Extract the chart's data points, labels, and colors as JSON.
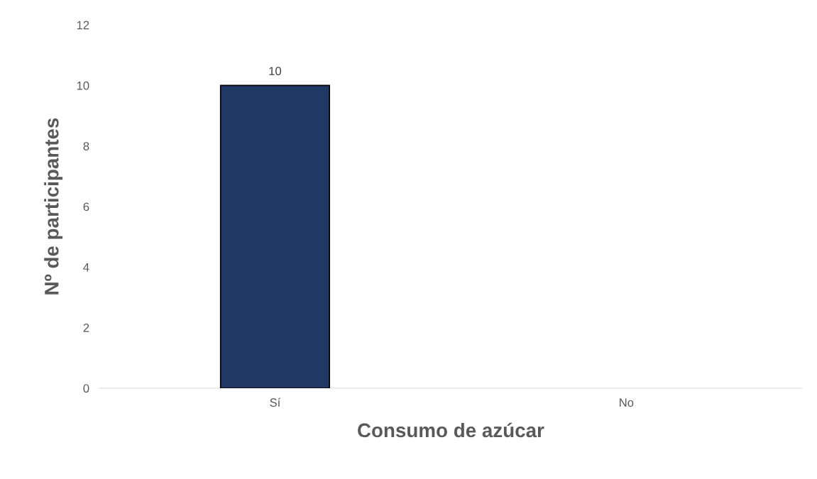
{
  "chart_data": {
    "type": "bar",
    "xlabel": "Consumo de azúcar",
    "ylabel": "Nº de participantes",
    "categories": [
      "Sí",
      "No"
    ],
    "values": [
      10,
      0
    ],
    "value_labels": [
      "10",
      null
    ],
    "color": "#203864",
    "ylim": [
      0,
      12
    ],
    "yticks": [
      0,
      2,
      4,
      6,
      8,
      10,
      12
    ],
    "grid": false,
    "legend": false
  }
}
